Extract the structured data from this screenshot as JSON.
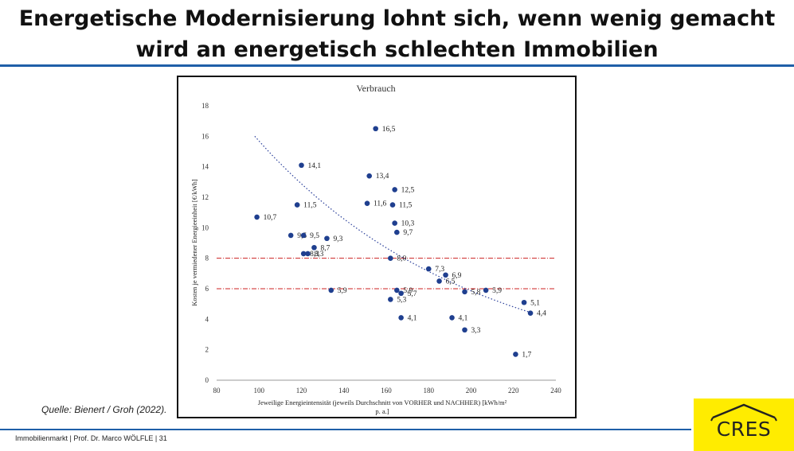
{
  "slide": {
    "title_line1": "Energetische Modernisierung lohnt sich, wenn wenig gemacht",
    "title_line2": "wird an energetisch schlechten Immobilien",
    "source": "Quelle: Bienert / Groh (2022).",
    "footer": "Immobilienmarkt | Prof. Dr. Marco WÖLFLE | 31",
    "logo_text": "CRES",
    "colors": {
      "rule": "#1f5fa8",
      "logo_bg": "#ffec00",
      "point": "#1f3f8f",
      "ref_line": "#cc2222"
    }
  },
  "chart_data": {
    "type": "scatter",
    "title": "Verbrauch",
    "xlabel_line1": "Jeweilige Energieintensität (jeweils Durchschnitt von VORHER und NACHHER) [kWh/m²",
    "xlabel_line2": "p. a.]",
    "ylabel": "Kosten je vermiedener Energieeinheit [€/kWh]",
    "xlim": [
      80,
      240
    ],
    "ylim": [
      0,
      18
    ],
    "x_ticks": [
      "80",
      "100",
      "120",
      "140",
      "160",
      "180",
      "200",
      "220",
      "240"
    ],
    "y_ticks": [
      "0",
      "2",
      "4",
      "6",
      "8",
      "10",
      "12",
      "14",
      "16",
      "18"
    ],
    "points": [
      {
        "x": 155,
        "y": 16.5,
        "label": "16,5"
      },
      {
        "x": 120,
        "y": 14.1,
        "label": "14,1"
      },
      {
        "x": 152,
        "y": 13.4,
        "label": "13,4"
      },
      {
        "x": 164,
        "y": 12.5,
        "label": "12,5"
      },
      {
        "x": 151,
        "y": 11.6,
        "label": "11,6"
      },
      {
        "x": 163,
        "y": 11.5,
        "label": "11,5"
      },
      {
        "x": 118,
        "y": 11.5,
        "label": "11,5"
      },
      {
        "x": 99,
        "y": 10.7,
        "label": "10,7"
      },
      {
        "x": 164,
        "y": 10.3,
        "label": "10,3"
      },
      {
        "x": 165,
        "y": 9.7,
        "label": "9,7"
      },
      {
        "x": 115,
        "y": 9.5,
        "label": "9,5"
      },
      {
        "x": 121,
        "y": 9.5,
        "label": "9,5"
      },
      {
        "x": 132,
        "y": 9.3,
        "label": "9,3"
      },
      {
        "x": 126,
        "y": 8.7,
        "label": "8,7"
      },
      {
        "x": 121,
        "y": 8.3,
        "label": "8,3"
      },
      {
        "x": 123,
        "y": 8.3,
        "label": "8,3"
      },
      {
        "x": 162,
        "y": 8.0,
        "label": "8,0"
      },
      {
        "x": 180,
        "y": 7.3,
        "label": "7,3"
      },
      {
        "x": 188,
        "y": 6.9,
        "label": "6,9"
      },
      {
        "x": 185,
        "y": 6.5,
        "label": "6,5"
      },
      {
        "x": 207,
        "y": 5.9,
        "label": "5,9"
      },
      {
        "x": 134,
        "y": 5.9,
        "label": "5,9"
      },
      {
        "x": 165,
        "y": 5.9,
        "label": "5,9"
      },
      {
        "x": 167,
        "y": 5.7,
        "label": "5,7"
      },
      {
        "x": 197,
        "y": 5.8,
        "label": "5,8"
      },
      {
        "x": 162,
        "y": 5.3,
        "label": "5,3"
      },
      {
        "x": 225,
        "y": 5.1,
        "label": "5,1"
      },
      {
        "x": 228,
        "y": 4.4,
        "label": "4,4"
      },
      {
        "x": 167,
        "y": 4.1,
        "label": "4,1"
      },
      {
        "x": 191,
        "y": 4.1,
        "label": "4,1"
      },
      {
        "x": 197,
        "y": 3.3,
        "label": "3,3"
      },
      {
        "x": 221,
        "y": 1.7,
        "label": "1,7"
      }
    ],
    "reference_lines": [
      8,
      6
    ],
    "trendline": "dotted curve",
    "grid": false
  }
}
